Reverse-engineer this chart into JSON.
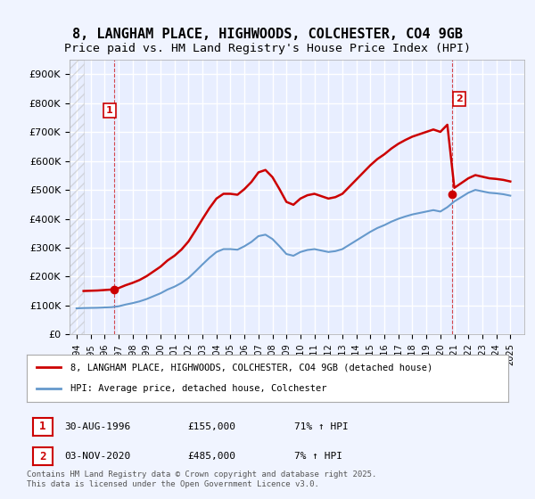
{
  "title_line1": "8, LANGHAM PLACE, HIGHWOODS, COLCHESTER, CO4 9GB",
  "title_line2": "Price paid vs. HM Land Registry's House Price Index (HPI)",
  "ylabel_ticks": [
    "£0",
    "£100K",
    "£200K",
    "£300K",
    "£400K",
    "£500K",
    "£600K",
    "£700K",
    "£800K",
    "£900K"
  ],
  "ytick_vals": [
    0,
    100000,
    200000,
    300000,
    400000,
    500000,
    600000,
    700000,
    800000,
    900000
  ],
  "ylim": [
    0,
    950000
  ],
  "xlim_start": 1993.5,
  "xlim_end": 2026.0,
  "background_color": "#f0f4ff",
  "plot_bg": "#e8eeff",
  "hatch_color": "#cccccc",
  "grid_color": "#ffffff",
  "red_line_color": "#cc0000",
  "blue_line_color": "#6699cc",
  "annotation_color": "#cc0000",
  "sale1_x": 1996.667,
  "sale1_y": 155000,
  "sale1_label": "1",
  "sale1_date": "30-AUG-1996",
  "sale1_price": "£155,000",
  "sale1_hpi": "71% ↑ HPI",
  "sale2_x": 2020.836,
  "sale2_y": 485000,
  "sale2_label": "2",
  "sale2_date": "03-NOV-2020",
  "sale2_price": "£485,000",
  "sale2_hpi": "7% ↑ HPI",
  "legend_line1": "8, LANGHAM PLACE, HIGHWOODS, COLCHESTER, CO4 9GB (detached house)",
  "legend_line2": "HPI: Average price, detached house, Colchester",
  "footnote": "Contains HM Land Registry data © Crown copyright and database right 2025.\nThis data is licensed under the Open Government Licence v3.0.",
  "hatch_end_year": 1994.5
}
